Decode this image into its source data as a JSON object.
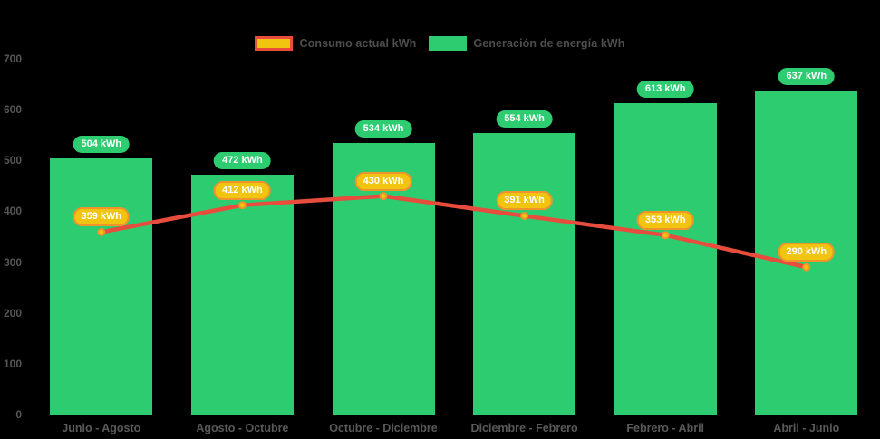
{
  "chart_data": {
    "type": "bar",
    "title": "",
    "unit": "kWh",
    "categories": [
      "Junio - Agosto",
      "Agosto - Octubre",
      "Octubre - Diciembre",
      "Diciembre - Febrero",
      "Febrero - Abril",
      "Abril - Junio"
    ],
    "series": [
      {
        "name": "Consumo actual kWh",
        "type": "line",
        "values": [
          359,
          412,
          430,
          391,
          353,
          290
        ],
        "color": "#e74c3c",
        "marker_fill": "#f1c40f",
        "marker_stroke": "#f0932b",
        "label_bg": "#f1c40f",
        "label_border": "#f0932b",
        "label_text_color": "#ffffff"
      },
      {
        "name": "Generación de energía kWh",
        "type": "bar",
        "values": [
          504,
          472,
          534,
          554,
          613,
          637
        ],
        "color": "#2ecc71",
        "label_bg": "#2ecc71",
        "label_text_color": "#ffffff"
      }
    ],
    "bar_labels": [
      "504 kWh",
      "472 kWh",
      "534 kWh",
      "554 kWh",
      "613 kWh",
      "637 kWh"
    ],
    "point_labels": [
      "359 kWh",
      "412 kWh",
      "430 kWh",
      "391 kWh",
      "353 kWh",
      "290 kWh"
    ],
    "xlabel": "",
    "ylabel": "",
    "y_axis": {
      "min": 0,
      "max": 700,
      "tick_step": 100,
      "ticks": [
        0,
        100,
        200,
        300,
        400,
        500,
        600,
        700
      ]
    },
    "legend_position": "top",
    "grid": false,
    "background_color": "#000000",
    "axis_label_color": "#5a5a5a"
  }
}
